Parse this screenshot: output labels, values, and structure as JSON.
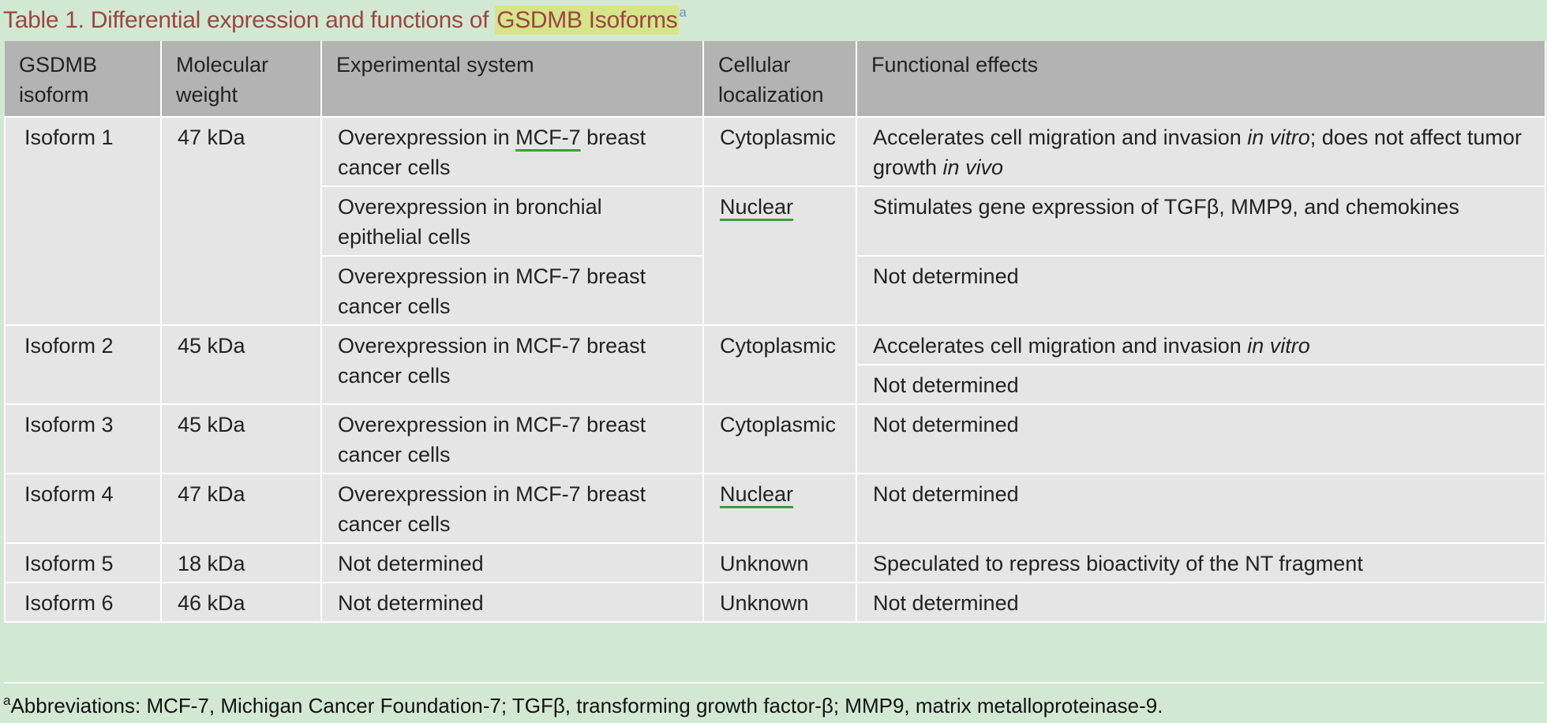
{
  "caption": {
    "prefix": "Table 1. Differential expression and functions of ",
    "highlight": "GSDMB Isoforms",
    "marker": "a"
  },
  "headers": [
    [
      "GSDMB",
      "isoform"
    ],
    [
      "Molecular",
      "weight"
    ],
    [
      "Experimental system"
    ],
    [
      "Cellular",
      "localization"
    ],
    [
      "Functional effects"
    ]
  ],
  "rows": [
    {
      "isoform": "Isoform 1",
      "weight": "47 kDa",
      "e1_a": "Overexpression in ",
      "e1_link": "MCF-7",
      "e1_b": " breast cancer cells",
      "loc1": "Cytoplasmic",
      "f1_a": "Accelerates cell migration and invasion ",
      "f1_i1": "in vitro",
      "f1_b": "; does not affect tumor growth ",
      "f1_i2": "in vivo",
      "e2": "Overexpression in bronchial epithelial cells",
      "loc2": "Nuclear",
      "f2": "Stimulates gene expression of TGFβ, MMP9, and chemokines",
      "e3": "Overexpression in MCF-7 breast cancer cells",
      "f3": "Not determined"
    },
    {
      "isoform": "Isoform 2",
      "weight": "45 kDa",
      "exp": "Overexpression in MCF-7 breast cancer cells",
      "loc": "Cytoplasmic",
      "f1_a": "Accelerates cell migration and invasion ",
      "f1_i": "in vitro",
      "f2": "Not determined"
    },
    {
      "isoform": "Isoform 3",
      "weight": "45 kDa",
      "exp": "Overexpression in MCF-7 breast cancer cells",
      "loc": "Cytoplasmic",
      "func": "Not determined"
    },
    {
      "isoform": "Isoform 4",
      "weight": "47 kDa",
      "exp": "Overexpression in MCF-7 breast cancer cells",
      "loc": "Nuclear",
      "func": "Not determined"
    },
    {
      "isoform": "Isoform 5",
      "weight": "18 kDa",
      "exp": "Not determined",
      "loc": "Unknown",
      "func": "Speculated to repress bioactivity of the NT fragment"
    },
    {
      "isoform": "Isoform 6",
      "weight": "46 kDa",
      "exp": "Not determined",
      "loc": "Unknown",
      "func": "Not determined"
    }
  ],
  "footnote": {
    "marker": "a",
    "text": "Abbreviations: MCF-7, Michigan Cancer Foundation-7; TGFβ, transforming growth factor-β; MMP9, matrix metalloproteinase-9."
  },
  "colors": {
    "background": "#d3e8d2",
    "caption": "#9b4545",
    "highlight": "#d6e48a",
    "header_bg": "#b3b3b3",
    "cell_bg": "#e5e5e5",
    "link_underline": "#3d9a3d"
  }
}
